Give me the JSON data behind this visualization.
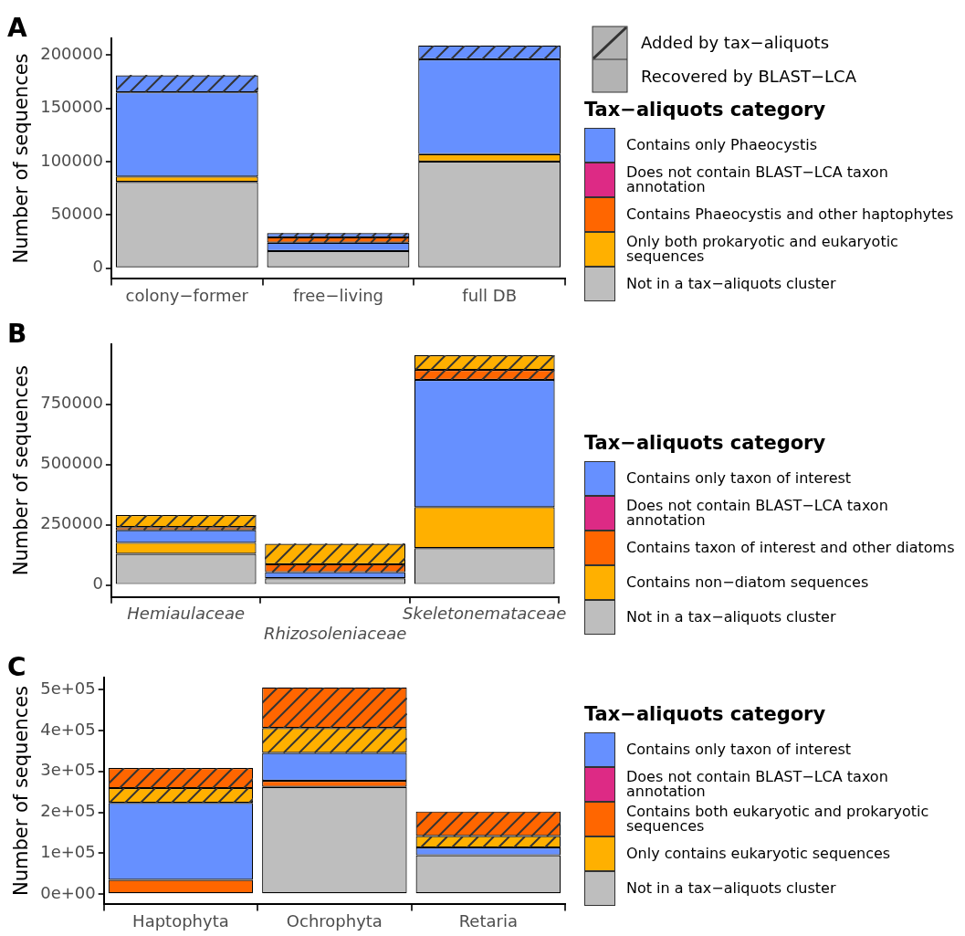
{
  "chart_data": [
    {
      "type": "bar",
      "title": "A",
      "ylabel": "Number of sequences",
      "legend_title": "Tax−aliquots category",
      "legend": "right",
      "stacked": true,
      "annotations": [
        "Added by tax−aliquots",
        "Recovered by BLAST−LCA"
      ],
      "categories": [
        "colony−former",
        "free−living",
        "full DB"
      ],
      "ylim": [
        -10000,
        216000
      ],
      "yticks": [
        0,
        50000,
        100000,
        150000,
        200000
      ],
      "series": [
        {
          "name": "Not in a tax−aliquots cluster",
          "color": "#bebebe",
          "values": [
            81000,
            16000,
            100000
          ]
        },
        {
          "name": "Only both prokaryotic and eukaryotic sequences",
          "color": "#ffb000",
          "values": [
            5000,
            null,
            7000
          ]
        },
        {
          "name": "Contains Phaeocystis and other haptophytes",
          "color": "#ff6600",
          "values": [
            null,
            null,
            null
          ]
        },
        {
          "name": "Does not contain BLAST−LCA taxon annotation",
          "color": "#dd2a85",
          "values": [
            null,
            null,
            null
          ]
        },
        {
          "name": "Contains only Phaeocystis",
          "color": "#6690ff",
          "values": [
            79000,
            8000,
            89000
          ]
        },
        {
          "color": "#ff6600",
          "values": [
            null,
            5000,
            null
          ]
        },
        {
          "color": "#6690ff",
          "values": [
            16000,
            4000,
            13000
          ]
        }
      ]
    },
    {
      "type": "bar",
      "title": "B",
      "ylabel": "Number of sequences",
      "legend_title": "Tax−aliquots category",
      "legend": "right",
      "stacked": true,
      "categories": [
        "Hemiaulaceae",
        "Rhizosoleniaceae",
        "Skeletonemataceae"
      ],
      "ylim": [
        -50000,
        1000000
      ],
      "yticks": [
        0,
        250000,
        500000,
        750000
      ],
      "series": [
        {
          "name": "Not in a tax−aliquots cluster",
          "color": "#bebebe",
          "values": [
            129000,
            28000,
            153000
          ]
        },
        {
          "name": "Contains non−diatom sequences",
          "color": "#ffb000",
          "values": [
            46000,
            null,
            170000
          ]
        },
        {
          "name": "Contains taxon of interest and other diatoms",
          "color": "#ff6600",
          "values": [
            null,
            null,
            null
          ]
        },
        {
          "name": "Does not contain BLAST−LCA taxon annotation",
          "color": "#dd2a85",
          "values": [
            null,
            null,
            null
          ]
        },
        {
          "name": "Contains only taxon of interest",
          "color": "#6690ff",
          "values": [
            52000,
            25000,
            528000
          ]
        },
        {
          "color": "#ff6600",
          "values": [
            13000,
            33000,
            41000
          ]
        },
        {
          "color": "#ffb000",
          "values": [
            50000,
            85000,
            61000
          ]
        }
      ]
    },
    {
      "type": "bar",
      "title": "C",
      "ylabel": "Number of sequences",
      "legend_title": "Tax−aliquots category",
      "legend": "right",
      "stacked": true,
      "categories": [
        "Haptophyta",
        "Ochrophyta",
        "Retaria"
      ],
      "ylim": [
        -25000,
        530000
      ],
      "yticks": [
        {
          "value": 0,
          "label": "0e+00"
        },
        {
          "value": 100000,
          "label": "1e+05"
        },
        {
          "value": 200000,
          "label": "2e+05"
        },
        {
          "value": 300000,
          "label": "3e+05"
        },
        {
          "value": 400000,
          "label": "4e+05"
        },
        {
          "value": 500000,
          "label": "5e+05"
        }
      ],
      "series": [
        {
          "name": "Not in a tax−aliquots cluster",
          "color": "#bebebe",
          "values": [
            null,
            262000,
            95000
          ]
        },
        {
          "name": "Only contains eukaryotic sequences",
          "color": "#ffb000",
          "values": [
            null,
            null,
            null
          ]
        },
        {
          "name": "Contains both eukaryotic and prokaryotic sequences",
          "color": "#ff6600",
          "values": [
            35000,
            15000,
            null
          ]
        },
        {
          "name": "Does not contain BLAST−LCA taxon annotation",
          "color": "#dd2a85",
          "values": [
            null,
            null,
            null
          ]
        },
        {
          "name": "Contains only taxon of interest",
          "color": "#6690ff",
          "values": [
            188000,
            68000,
            19000
          ]
        },
        {
          "color": "#ffb000",
          "values": [
            36000,
            61000,
            28000
          ]
        },
        {
          "color": "#ff6600",
          "values": [
            49000,
            99000,
            60000
          ]
        }
      ]
    }
  ]
}
